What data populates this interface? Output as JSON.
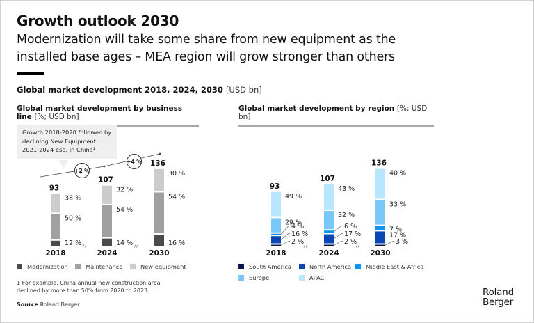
{
  "header": {
    "title": "Growth outlook 2030",
    "subtitle": "Modernization will take some share from new equipment as the installed base ages – MEA region will grow stronger than others"
  },
  "section": {
    "title": "Global market development 2018, 2024, 2030",
    "unit": "[USD bn]"
  },
  "callout": {
    "text": "Growth 2018-2020 followed by declining New Equipment 2021-2024 esp. in China¹"
  },
  "footnote": "1 For example, China annual new construction area declined by more than 50% from 2020 to 2023",
  "source": {
    "label": "Source",
    "value": "Roland Berger"
  },
  "brand": {
    "line1": "Roland",
    "line2": "Berger"
  },
  "colors": {
    "modernization": "#4b4b4b",
    "maintenance": "#a0a0a0",
    "new_equipment": "#cccccc",
    "south_america": "#0a1450",
    "north_america": "#0a46b4",
    "middle_east_africa": "#0a96f0",
    "europe": "#78c8fa",
    "apac": "#b9e6ff"
  },
  "chart_data": [
    {
      "type": "bar",
      "stacked": true,
      "title": "Global market development by business line",
      "unit": "[%; USD bn]",
      "categories": [
        "2018",
        "2024",
        "2030"
      ],
      "totals": [
        93,
        107,
        136
      ],
      "total_labels": [
        "93",
        "107",
        "136"
      ],
      "series": [
        {
          "name": "Modernization",
          "values": [
            12,
            14,
            16
          ],
          "labels": [
            "12 %",
            "14 %",
            "16 %"
          ]
        },
        {
          "name": "Maintenance",
          "values": [
            50,
            54,
            54
          ],
          "labels": [
            "50 %",
            "54 %",
            "54 %"
          ]
        },
        {
          "name": "New equipment",
          "values": [
            38,
            32,
            30
          ],
          "labels": [
            "38 %",
            "32 %",
            "30 %"
          ]
        }
      ],
      "growth_annotations": [
        {
          "between": [
            "2018",
            "2024"
          ],
          "label": "+2 %"
        },
        {
          "between": [
            "2024",
            "2030"
          ],
          "label": "+4 %"
        }
      ],
      "axis_break_marks": true,
      "legend": {
        "position": "bottom",
        "entries": [
          "Modernization",
          "Maintenance",
          "New equipment"
        ]
      }
    },
    {
      "type": "bar",
      "stacked": true,
      "title": "Global market development by region",
      "unit": "[%; USD bn]",
      "categories": [
        "2018",
        "2024",
        "2030"
      ],
      "totals": [
        93,
        107,
        136
      ],
      "total_labels": [
        "93",
        "107",
        "136"
      ],
      "series": [
        {
          "name": "South America",
          "values": [
            2,
            2,
            3
          ],
          "labels": [
            "2 %",
            "2 %",
            "3 %"
          ]
        },
        {
          "name": "North America",
          "values": [
            16,
            17,
            17
          ],
          "labels": [
            "16 %",
            "17 %",
            "17 %"
          ]
        },
        {
          "name": "Middle East & Africa",
          "values": [
            4,
            6,
            7
          ],
          "labels": [
            "4 %",
            "6 %",
            "7 %"
          ]
        },
        {
          "name": "Europe",
          "values": [
            29,
            32,
            33
          ],
          "labels": [
            "29 %",
            "32 %",
            "33 %"
          ]
        },
        {
          "name": "APAC",
          "values": [
            49,
            43,
            40
          ],
          "labels": [
            "49 %",
            "43 %",
            "40 %"
          ]
        }
      ],
      "axis_break_marks": true,
      "legend": {
        "position": "bottom",
        "entries": [
          "South America",
          "North America",
          "Middle East & Africa",
          "Europe",
          "APAC"
        ]
      }
    }
  ]
}
